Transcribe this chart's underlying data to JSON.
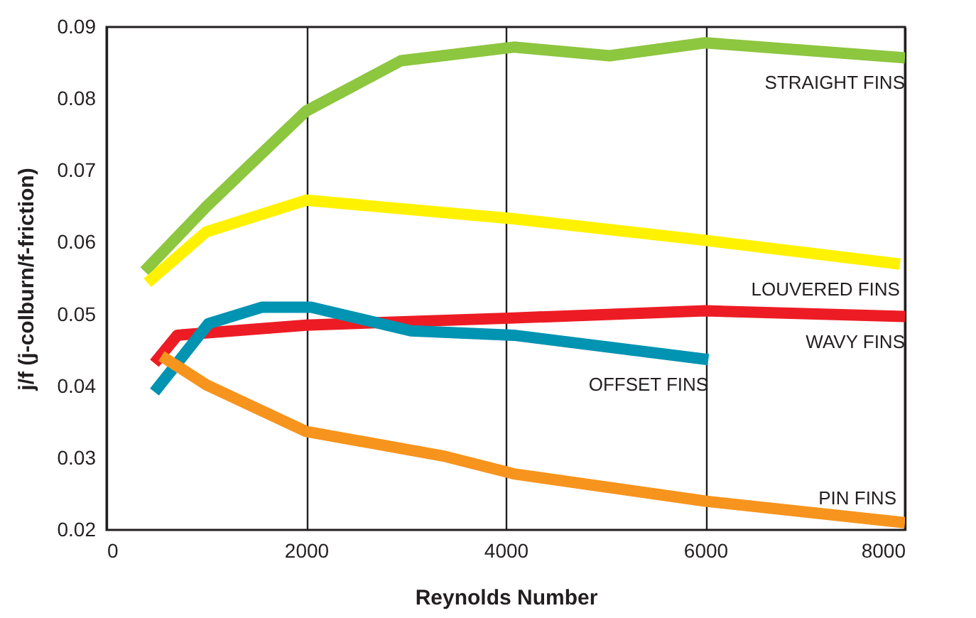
{
  "chart_data": {
    "type": "line",
    "xlabel": "Reynolds Number",
    "ylabel": "j/f (j-colburn/f-friction)",
    "xlim": [
      0,
      8000
    ],
    "xticks": [
      0,
      2000,
      4000,
      6000,
      8000
    ],
    "ylim": [
      0.02,
      0.09
    ],
    "yticks": [
      0.02,
      0.03,
      0.04,
      0.05,
      0.06,
      0.07,
      0.08,
      0.09
    ],
    "grid": "x",
    "legend": false,
    "marker": "none",
    "line_style": "solid",
    "series": [
      {
        "name": "STRAIGHT FINS",
        "color": "#8dc63f",
        "x": [
          380,
          1000,
          2000,
          2950,
          4080,
          5040,
          6000,
          8000
        ],
        "values": [
          0.056,
          0.065,
          0.0783,
          0.0853,
          0.0872,
          0.086,
          0.0878,
          0.0857
        ]
      },
      {
        "name": "LOUVERED FINS",
        "color": "#fff200",
        "x": [
          410,
          1000,
          2000,
          4080,
          6000,
          7950
        ],
        "values": [
          0.0544,
          0.0615,
          0.0659,
          0.0633,
          0.0603,
          0.057
        ]
      },
      {
        "name": "WAVY FINS",
        "color": "#ed1c24",
        "x": [
          480,
          710,
          2000,
          4080,
          6000,
          8000
        ],
        "values": [
          0.0432,
          0.0471,
          0.0485,
          0.0495,
          0.0505,
          0.0497
        ]
      },
      {
        "name": "OFFSET FINS",
        "color": "#0093b2",
        "x": [
          480,
          1020,
          1560,
          2050,
          3050,
          4080,
          6030
        ],
        "values": [
          0.0392,
          0.0487,
          0.051,
          0.051,
          0.0477,
          0.0471,
          0.0437
        ]
      },
      {
        "name": "PIN FINS",
        "color": "#f7941d",
        "x": [
          550,
          1000,
          2000,
          3370,
          4080,
          6000,
          8000
        ],
        "values": [
          0.0442,
          0.0402,
          0.0337,
          0.0303,
          0.0278,
          0.024,
          0.021
        ]
      }
    ]
  }
}
